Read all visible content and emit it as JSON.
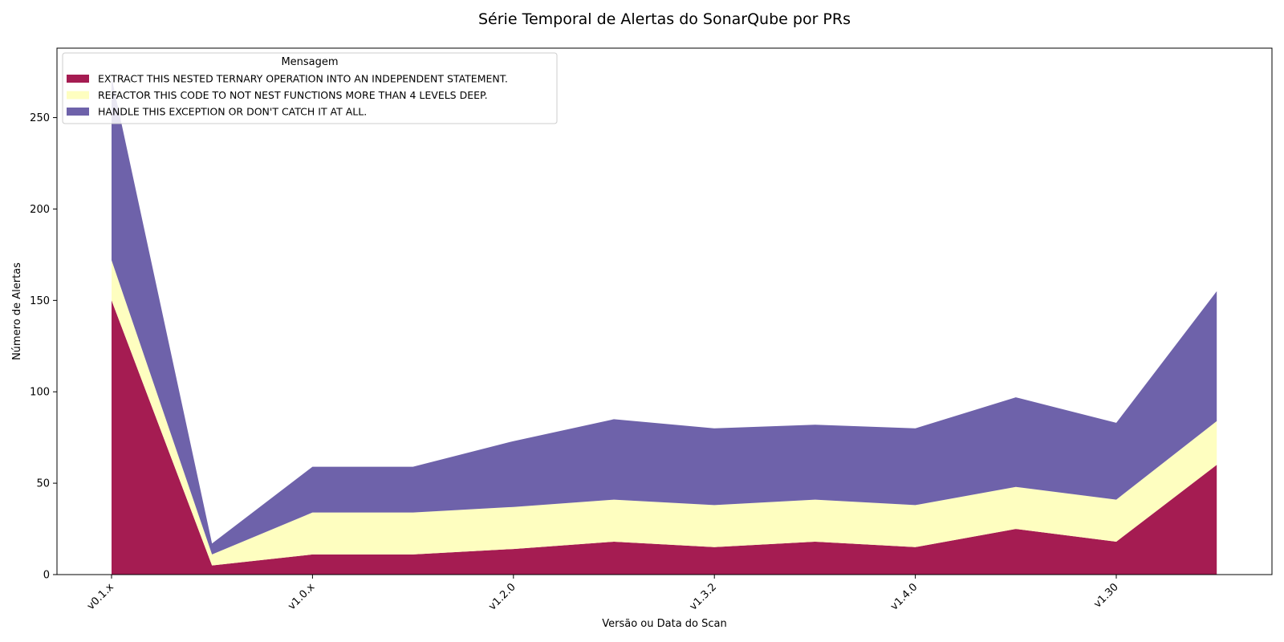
{
  "chart_data": {
    "type": "area",
    "stacked": true,
    "title": "Série Temporal de Alertas do SonarQube por PRs",
    "xlabel": "Versão ou Data do Scan",
    "ylabel": "Número de Alertas",
    "x_tick_labels": [
      "v0.1.x",
      "v1.0.x",
      "v1.2.0",
      "v1.3.2",
      "v1.4.0",
      "v1.30"
    ],
    "x_tick_label_positions": [
      0,
      2,
      4,
      6,
      8,
      10
    ],
    "x": [
      0,
      1,
      2,
      3,
      4,
      5,
      6,
      7,
      8,
      9,
      10,
      11
    ],
    "ylim": [
      0,
      288
    ],
    "yticks": [
      0,
      50,
      100,
      150,
      200,
      250
    ],
    "legend": {
      "title": "Mensagem",
      "location": "upper left"
    },
    "series": [
      {
        "name": "EXTRACT THIS NESTED TERNARY OPERATION INTO AN INDEPENDENT STATEMENT.",
        "color": "#a51c52",
        "values": [
          150,
          5,
          11,
          11,
          14,
          18,
          15,
          18,
          15,
          25,
          18,
          60
        ]
      },
      {
        "name": "REFACTOR THIS CODE TO NOT NEST FUNCTIONS MORE THAN 4 LEVELS DEEP.",
        "color": "#fefec0",
        "values": [
          22,
          6,
          23,
          23,
          23,
          23,
          23,
          23,
          23,
          23,
          23,
          24
        ]
      },
      {
        "name": "HANDLE THIS EXCEPTION OR DON'T CATCH IT AT ALL.",
        "color": "#6e62aa",
        "values": [
          100,
          6,
          25,
          25,
          36,
          44,
          42,
          41,
          42,
          49,
          42,
          71
        ]
      }
    ]
  }
}
